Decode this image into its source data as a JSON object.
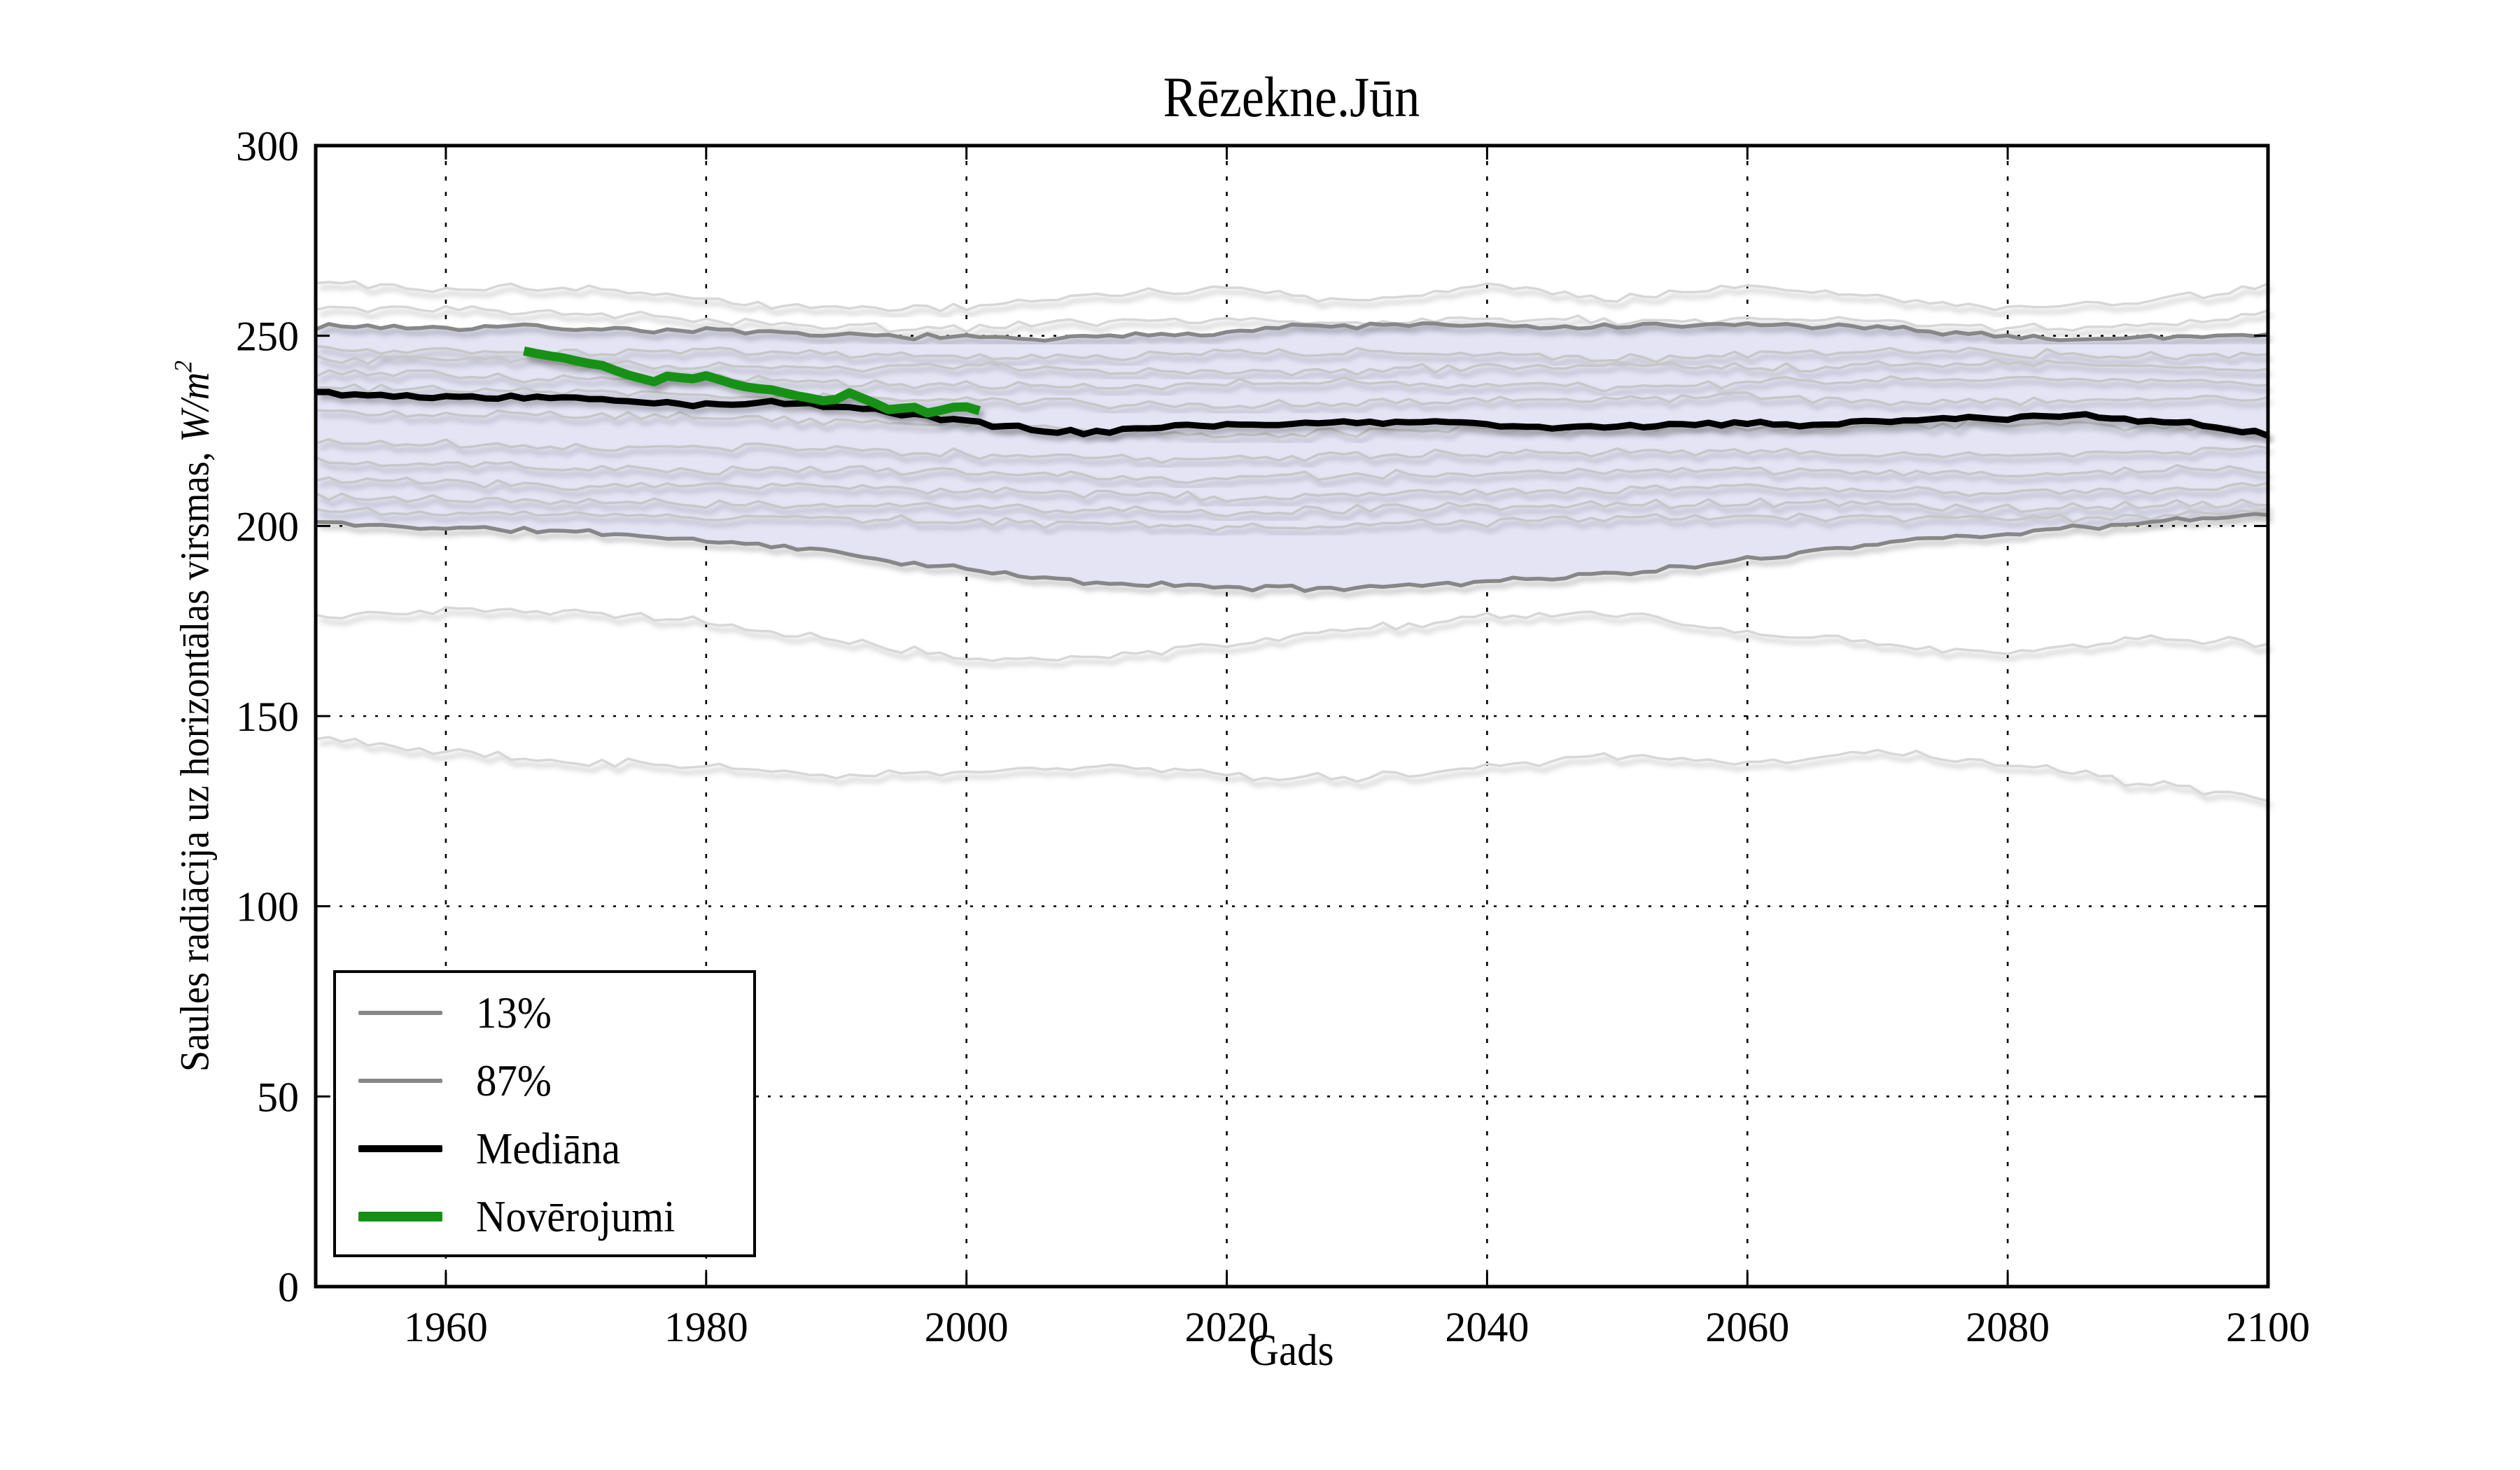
{
  "figure": {
    "background": "#ffffff",
    "frame_color": "#000000",
    "grid_style": "dotted"
  },
  "labels": {
    "ylabel_prefix": "Saules radiācija uz horizontālas virsmas, ",
    "ylabel_math": "W/m",
    "ylabel_exp": "2"
  },
  "legend": [
    {
      "label": "13%",
      "color": "#878787",
      "thickness": 6
    },
    {
      "label": "87%",
      "color": "#878787",
      "thickness": 6
    },
    {
      "label": "Mediāna",
      "color": "#000000",
      "thickness": 10
    },
    {
      "label": "Novērojumi",
      "color": "#149114",
      "thickness": 14
    }
  ],
  "chart_data": {
    "type": "line",
    "title": "Rēzekne.Jūn",
    "xlabel": "Gads",
    "ylabel": "Saules radiācija uz horizontālas virsmas, W/m²",
    "xlim": [
      1950,
      2100
    ],
    "ylim": [
      0,
      300
    ],
    "xticks": [
      1960,
      1980,
      2000,
      2020,
      2040,
      2060,
      2080,
      2100
    ],
    "yticks": [
      0,
      50,
      100,
      150,
      200,
      250,
      300
    ],
    "grid": true,
    "legend_position": "lower left",
    "band_fill_color": "#e4e4f5",
    "band_edge_color": "#878787",
    "percentile_band": {
      "labels": {
        "lower": "13%",
        "upper": "87%"
      },
      "x": [
        1950,
        1955,
        1960,
        1965,
        1970,
        1975,
        1980,
        1985,
        1990,
        1995,
        2000,
        2005,
        2010,
        2015,
        2020,
        2025,
        2030,
        2035,
        2040,
        2045,
        2050,
        2055,
        2060,
        2065,
        2070,
        2075,
        2080,
        2085,
        2090,
        2095,
        2100
      ],
      "p87": [
        252.5,
        252.5,
        252,
        252.5,
        252,
        251.5,
        251.5,
        250.5,
        250,
        250,
        249.5,
        249,
        249.5,
        250.5,
        251,
        252.5,
        252.5,
        253,
        252.5,
        252,
        252.5,
        252.5,
        253,
        252.5,
        252,
        251,
        250,
        249,
        249.5,
        250,
        250.5
      ],
      "p13": [
        201,
        200,
        199.5,
        199,
        198.5,
        197.5,
        196,
        195,
        193,
        190.5,
        188.5,
        186.5,
        185,
        184.5,
        184,
        183.5,
        184,
        184.5,
        185.5,
        186.5,
        187.5,
        189,
        191,
        193.5,
        195.5,
        197,
        198,
        199.5,
        200.5,
        202,
        203
      ]
    },
    "series": [
      {
        "name": "Mediāna",
        "role": "median",
        "color": "#000000",
        "width": 9,
        "x": [
          1950,
          1955,
          1960,
          1965,
          1970,
          1975,
          1980,
          1985,
          1990,
          1995,
          2000,
          2005,
          2010,
          2015,
          2020,
          2025,
          2030,
          2035,
          2040,
          2045,
          2050,
          2055,
          2060,
          2065,
          2070,
          2075,
          2080,
          2085,
          2090,
          2095,
          2100
        ],
        "y": [
          235,
          234.5,
          234,
          234,
          233.5,
          232.5,
          232,
          232.5,
          231.5,
          229.5,
          227.5,
          225.5,
          224.5,
          226,
          226.5,
          227,
          227,
          227.5,
          226.5,
          226,
          226.5,
          226.5,
          227,
          226.5,
          227.5,
          228,
          228.5,
          229,
          228,
          226.5,
          224
        ]
      },
      {
        "name": "Novērojumi",
        "role": "observations",
        "color": "#149114",
        "width": 13,
        "x": [
          1966,
          1967,
          1968,
          1969,
          1970,
          1971,
          1972,
          1973,
          1974,
          1975,
          1976,
          1977,
          1978,
          1979,
          1980,
          1981,
          1982,
          1983,
          1984,
          1985,
          1986,
          1987,
          1988,
          1989,
          1990,
          1991,
          1992,
          1993,
          1994,
          1995,
          1996,
          1997,
          1998,
          1999,
          2000,
          2001
        ],
        "y": [
          246,
          245.3,
          244.7,
          244.2,
          243.4,
          242.7,
          242.2,
          240.9,
          239.7,
          238.8,
          237.9,
          239.4,
          239,
          238.7,
          239.5,
          238.5,
          237.4,
          236.6,
          236.1,
          235.8,
          235,
          234.2,
          233.6,
          232.9,
          233.3,
          235,
          233.6,
          232.2,
          230.6,
          230.9,
          231.2,
          229.7,
          230.4,
          231.2,
          231.3,
          230.3
        ]
      }
    ],
    "ensemble_members": {
      "color_outside_band": "#d7d7d7",
      "color_inside_band": "#c7c7c7",
      "width": 3.5,
      "x": [
        1950,
        1960,
        1970,
        1980,
        1990,
        2000,
        2010,
        2020,
        2030,
        2040,
        2050,
        2060,
        2070,
        2080,
        2090,
        2100
      ],
      "runs": [
        [
          264,
          262.5,
          263,
          259.5,
          257,
          257.5,
          261,
          262,
          259.5,
          263,
          259.5,
          263.5,
          260,
          257.5,
          258.5,
          263
        ],
        [
          256.5,
          257,
          256,
          254,
          252.5,
          252,
          253.5,
          254.5,
          253.5,
          254.5,
          254,
          254.5,
          254,
          252,
          252.5,
          256
        ],
        [
          247,
          246,
          245.5,
          246.5,
          245,
          244,
          244.5,
          245.5,
          246,
          245,
          244,
          245,
          246,
          245.5,
          244.5,
          245.5
        ],
        [
          243.5,
          244,
          243,
          242,
          241.5,
          242.5,
          241,
          240,
          241,
          242,
          242.5,
          241.5,
          242,
          243,
          242,
          241
        ],
        [
          240,
          239.5,
          238.5,
          239,
          238,
          237,
          236.5,
          237.5,
          238,
          237,
          236.5,
          237.5,
          238.5,
          239,
          238,
          237.5
        ],
        [
          236.5,
          236,
          235.5,
          234.5,
          234,
          233,
          232,
          231.5,
          232.5,
          233,
          233.5,
          234,
          233,
          232.5,
          233.5,
          234
        ],
        [
          230,
          229.5,
          229,
          228.5,
          227.5,
          226.5,
          225,
          224,
          224.5,
          225.5,
          226,
          225.5,
          226.5,
          227,
          226,
          225
        ],
        [
          222,
          221.5,
          220.5,
          221,
          220,
          219,
          218,
          217.5,
          218.5,
          219,
          219.5,
          220,
          219,
          218.5,
          219.5,
          220.5
        ],
        [
          217,
          216,
          215.5,
          214.5,
          215,
          214,
          213,
          212.5,
          213.5,
          214,
          214.5,
          215,
          214,
          213.5,
          214.5,
          215
        ],
        [
          212,
          211.5,
          210.5,
          211,
          210,
          209,
          208.5,
          207.5,
          208,
          209,
          209.5,
          210,
          209.5,
          208.5,
          209.5,
          210.5
        ],
        [
          207.5,
          207,
          206.5,
          205.5,
          206,
          205,
          204,
          203.5,
          204.5,
          205,
          205.5,
          206,
          205.5,
          204.5,
          205.5,
          206
        ],
        [
          204,
          203.5,
          203,
          202.5,
          202,
          201,
          200.5,
          199.5,
          200,
          201,
          202,
          202.5,
          202,
          201.5,
          202.5,
          203.5
        ],
        [
          176,
          177.5,
          177.5,
          175,
          170,
          165,
          165.5,
          169,
          173,
          176,
          177,
          172,
          169.5,
          166,
          171,
          169
        ],
        [
          144,
          140.5,
          138,
          137,
          134.5,
          135.5,
          137,
          134.5,
          133.5,
          137,
          139.5,
          137.5,
          141,
          137.5,
          132.5,
          128.5
        ]
      ]
    }
  }
}
